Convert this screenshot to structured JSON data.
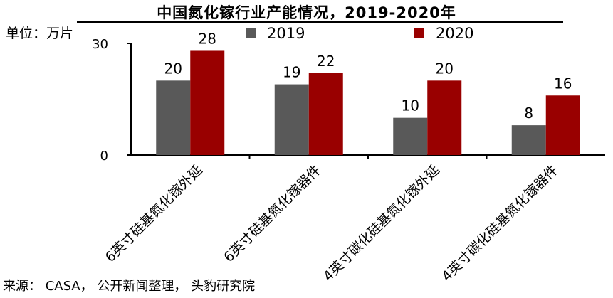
{
  "chart_data": {
    "type": "bar",
    "title": "中国氮化镓行业产能情况，2019-2020年",
    "ylabel": "单位：万片",
    "ylim": [
      0,
      30
    ],
    "yticks": [
      0,
      30
    ],
    "categories": [
      "6英寸硅基氮化镓外延",
      "6英寸硅基氮化镓器件",
      "4英寸碳化硅基氮化镓外延",
      "4英寸碳化硅基氮化镓器件"
    ],
    "series": [
      {
        "name": "2019",
        "values": [
          20,
          19,
          10,
          8
        ],
        "color": "#595959"
      },
      {
        "name": "2020",
        "values": [
          28,
          22,
          20,
          16
        ],
        "color": "#990000"
      }
    ],
    "legend_position": "top",
    "grid": false
  },
  "source": "来源： CASA， 公开新闻整理， 头豹研究院"
}
